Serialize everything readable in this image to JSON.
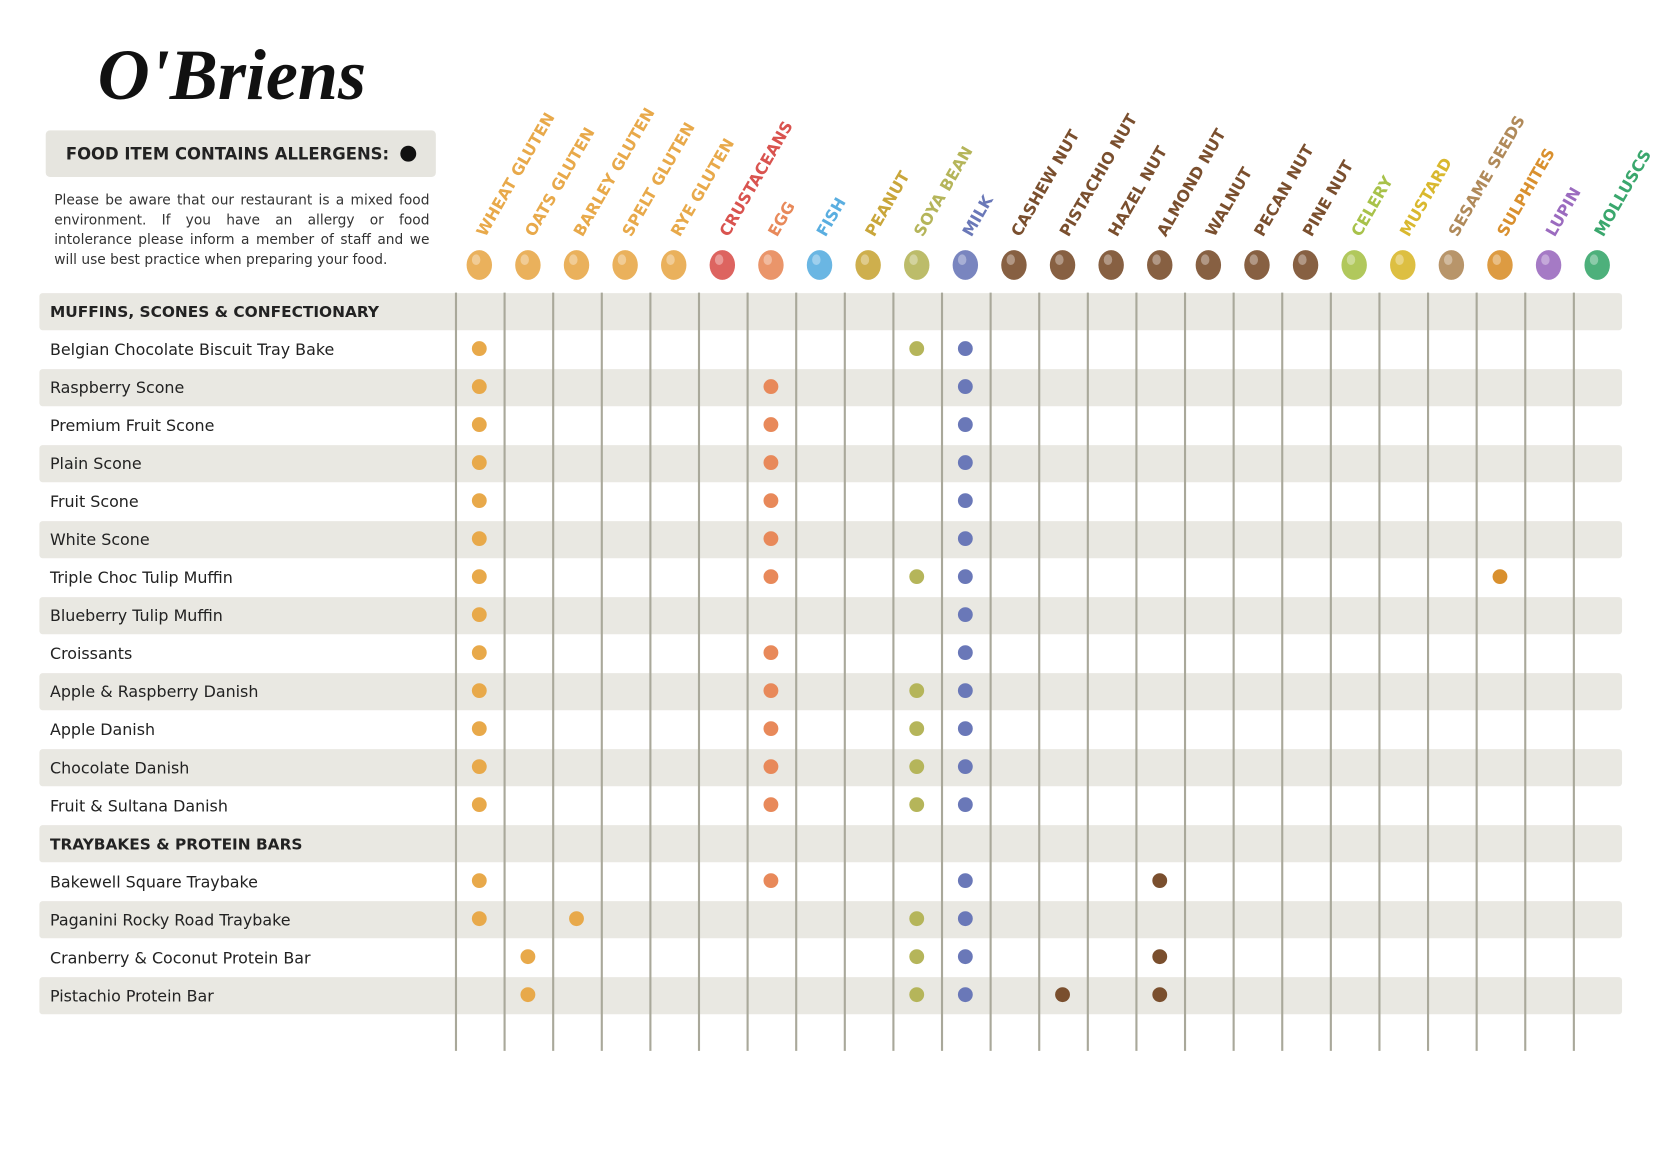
{
  "header": {
    "logo": "O'Briens",
    "legend": "FOOD ITEM CONTAINS ALLERGENS:",
    "notice": "Please be aware that our restaurant is a mixed food environment. If you have an allergy or food intolerance please inform a member of staff and we will use best practice when preparing your food."
  },
  "allergens": [
    {
      "name": "WHEAT GLUTEN",
      "color": "#e8a94a"
    },
    {
      "name": "OATS GLUTEN",
      "color": "#e8a94a"
    },
    {
      "name": "BARLEY GLUTEN",
      "color": "#e8a94a"
    },
    {
      "name": "SPELT GLUTEN",
      "color": "#e8a94a"
    },
    {
      "name": "RYE GLUTEN",
      "color": "#e8a94a"
    },
    {
      "name": "CRUSTACEANS",
      "color": "#d9534f"
    },
    {
      "name": "EGG",
      "color": "#e8895a"
    },
    {
      "name": "FISH",
      "color": "#5aaee0"
    },
    {
      "name": "PEANUT",
      "color": "#c9a63a"
    },
    {
      "name": "SOYA BEAN",
      "color": "#b5b55a"
    },
    {
      "name": "MILK",
      "color": "#6a78b8"
    },
    {
      "name": "CASHEW NUT",
      "color": "#7a4f2e"
    },
    {
      "name": "PISTACHIO NUT",
      "color": "#7a4f2e"
    },
    {
      "name": "HAZEL NUT",
      "color": "#7a4f2e"
    },
    {
      "name": "ALMOND NUT",
      "color": "#7a4f2e"
    },
    {
      "name": "WALNUT",
      "color": "#7a4f2e"
    },
    {
      "name": "PECAN NUT",
      "color": "#7a4f2e"
    },
    {
      "name": "PINE NUT",
      "color": "#7a4f2e"
    },
    {
      "name": "CELERY",
      "color": "#a8c24a"
    },
    {
      "name": "MUSTARD",
      "color": "#d9b82e"
    },
    {
      "name": "SESAME SEEDS",
      "color": "#b08a5a"
    },
    {
      "name": "SULPHITES",
      "color": "#d9902e"
    },
    {
      "name": "LUPIN",
      "color": "#9b6bbf"
    },
    {
      "name": "MOLLUSCS",
      "color": "#3aa76d"
    }
  ],
  "sections": [
    {
      "title": "MUFFINS, SCONES & CONFECTIONARY",
      "items": [
        {
          "name": "Belgian Chocolate Biscuit Tray Bake",
          "allergens": [
            0,
            9,
            10
          ]
        },
        {
          "name": "Raspberry Scone",
          "allergens": [
            0,
            6,
            10
          ]
        },
        {
          "name": "Premium Fruit Scone",
          "allergens": [
            0,
            6,
            10
          ]
        },
        {
          "name": "Plain Scone",
          "allergens": [
            0,
            6,
            10
          ]
        },
        {
          "name": "Fruit Scone",
          "allergens": [
            0,
            6,
            10
          ]
        },
        {
          "name": "White Scone",
          "allergens": [
            0,
            6,
            10
          ]
        },
        {
          "name": "Triple Choc Tulip Muffin",
          "allergens": [
            0,
            6,
            9,
            10,
            21
          ]
        },
        {
          "name": "Blueberry Tulip Muffin",
          "allergens": [
            0,
            10
          ]
        },
        {
          "name": "Croissants",
          "allergens": [
            0,
            6,
            10
          ]
        },
        {
          "name": "Apple & Raspberry Danish",
          "allergens": [
            0,
            6,
            9,
            10
          ]
        },
        {
          "name": "Apple Danish",
          "allergens": [
            0,
            6,
            9,
            10
          ]
        },
        {
          "name": "Chocolate Danish",
          "allergens": [
            0,
            6,
            9,
            10
          ]
        },
        {
          "name": "Fruit & Sultana Danish",
          "allergens": [
            0,
            6,
            9,
            10
          ]
        }
      ]
    },
    {
      "title": "TRAYBAKES & PROTEIN BARS",
      "items": [
        {
          "name": "Bakewell Square Traybake",
          "allergens": [
            0,
            6,
            10,
            14
          ]
        },
        {
          "name": "Paganini Rocky Road Traybake",
          "allergens": [
            0,
            2,
            9,
            10
          ]
        },
        {
          "name": "Cranberry & Coconut Protein Bar",
          "allergens": [
            1,
            9,
            10,
            14
          ]
        },
        {
          "name": "Pistachio Protein Bar",
          "allergens": [
            1,
            9,
            10,
            12,
            14
          ]
        }
      ]
    }
  ]
}
